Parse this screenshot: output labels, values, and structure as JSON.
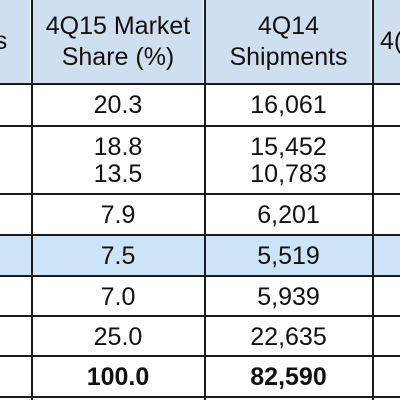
{
  "table": {
    "headers": {
      "col0": [
        "s"
      ],
      "share": [
        "4Q15 Market",
        "Share (%)"
      ],
      "shipments": [
        "4Q14",
        "Shipments"
      ],
      "col3": [
        "4("
      ]
    },
    "rows": [
      {
        "share": "20.3",
        "shipments": "16,061"
      },
      {
        "share": "18.8",
        "shipments": "15,452"
      },
      {
        "share": "13.5",
        "shipments": "10,783"
      },
      {
        "share": "7.9",
        "shipments": "6,201"
      },
      {
        "share": "7.5",
        "shipments": "5,519",
        "highlight": true
      },
      {
        "share": "7.0",
        "shipments": "5,939"
      },
      {
        "share": "25.0",
        "shipments": "22,635"
      },
      {
        "share": "100.0",
        "shipments": "82,590",
        "total": true
      }
    ]
  },
  "colors": {
    "header_bg": "#cfdff0",
    "highlight_bg": "#cde3f8",
    "grid": "#1a1a1a",
    "text": "#111111"
  }
}
